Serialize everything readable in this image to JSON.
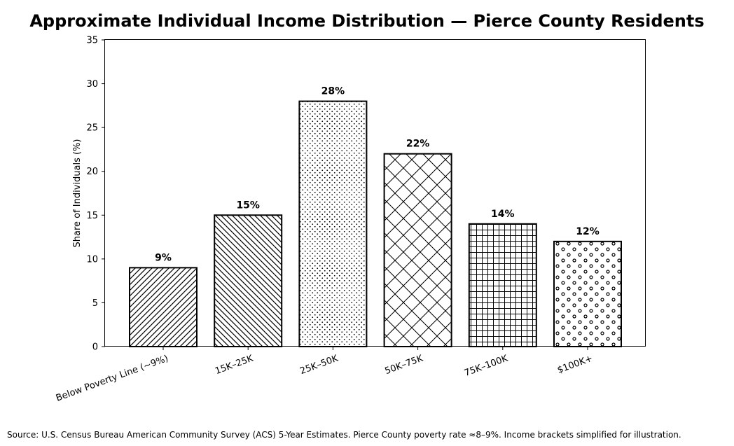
{
  "chart_data": {
    "type": "bar",
    "title": "Approximate Individual Income Distribution — Pierce County Residents",
    "ylabel": "Share of Individuals (%)",
    "xlabel": "",
    "categories": [
      "Below Poverty Line (~9%)",
      "15K–25K",
      "25K–50K",
      "50K–75K",
      "75K–100K",
      "$100K+"
    ],
    "values": [
      9,
      15,
      28,
      22,
      14,
      12
    ],
    "value_labels": [
      "9%",
      "15%",
      "28%",
      "22%",
      "14%",
      "12%"
    ],
    "patterns": [
      "diagonal-forward",
      "diagonal-back",
      "dots",
      "crosshatch",
      "grid",
      "circles"
    ],
    "ylim": [
      0,
      35
    ],
    "yticks": [
      0,
      5,
      10,
      15,
      20,
      25,
      30,
      35
    ],
    "grid": false,
    "bar_fill": "#ffffff",
    "bar_edge": "#000000",
    "source": "Source: U.S. Census Bureau American Community Survey (ACS) 5-Year Estimates. Pierce County poverty rate ≈8–9%. Income brackets simplified for illustration."
  }
}
